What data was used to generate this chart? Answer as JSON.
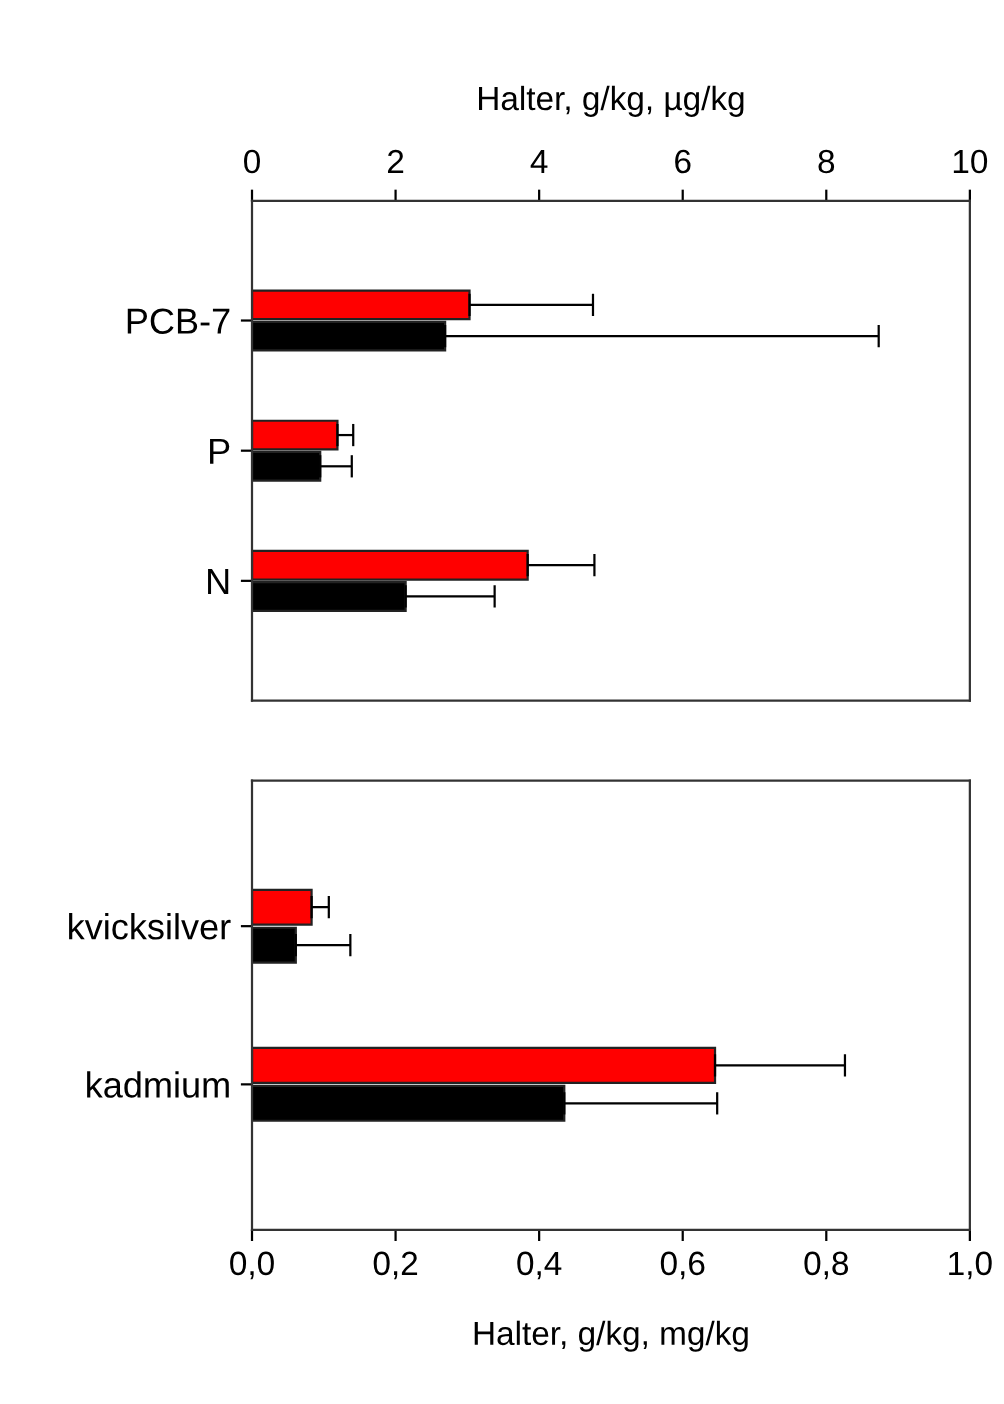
{
  "chart_data": [
    {
      "type": "bar",
      "orientation": "horizontal",
      "xlabel": "Halter, g/kg, µg/kg",
      "categories": [
        "PCB-7",
        "P",
        "N"
      ],
      "xlim": [
        0,
        10
      ],
      "xticks": [
        0,
        2,
        4,
        6,
        8,
        10
      ],
      "series": [
        {
          "color": "#ff0000",
          "values": [
            3.03,
            1.19,
            3.84
          ],
          "errors": [
            [
              3.03,
              4.75
            ],
            [
              1.19,
              1.41
            ],
            [
              3.84,
              4.77
            ]
          ]
        },
        {
          "color": "#000000",
          "values": [
            2.69,
            0.95,
            2.14
          ],
          "errors": [
            [
              2.69,
              8.73
            ],
            [
              0.95,
              1.39
            ],
            [
              2.14,
              3.38
            ]
          ]
        }
      ],
      "grid": false,
      "legend": false
    },
    {
      "type": "bar",
      "orientation": "horizontal",
      "xlabel": "Halter, g/kg, mg/kg",
      "categories": [
        "kvicksilver",
        "kadmium"
      ],
      "xlim": [
        0,
        1
      ],
      "xticks": [
        {
          "value": 0,
          "label": "0,0"
        },
        {
          "value": 0.2,
          "label": "0,2"
        },
        {
          "value": 0.4,
          "label": "0,4"
        },
        {
          "value": 0.6,
          "label": "0,6"
        },
        {
          "value": 0.8,
          "label": "0,8"
        },
        {
          "value": 1,
          "label": "1,0"
        }
      ],
      "series": [
        {
          "color": "#ff0000",
          "values": [
            0.083,
            0.645
          ],
          "errors": [
            [
              0.083,
              0.107
            ],
            [
              0.645,
              0.826
            ]
          ]
        },
        {
          "color": "#000000",
          "values": [
            0.061,
            0.435
          ],
          "errors": [
            [
              0.061,
              0.137
            ],
            [
              0.435,
              0.648
            ]
          ]
        }
      ],
      "grid": false,
      "legend": false
    }
  ]
}
